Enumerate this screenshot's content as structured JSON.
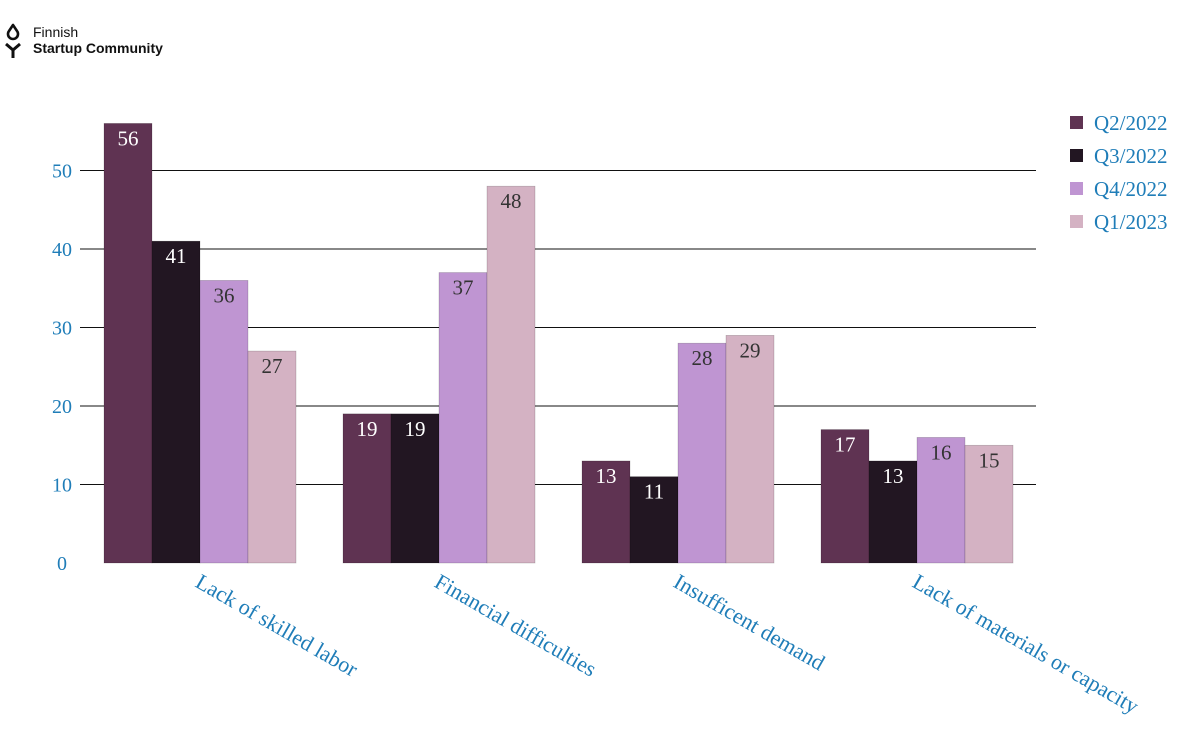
{
  "logo": {
    "line1": "Finnish",
    "line2": "Startup Community"
  },
  "chart_data": {
    "type": "bar",
    "categories": [
      "Lack of skilled labor",
      "Financial difficulties",
      "Insufficent demand",
      "Lack of materials or capacity"
    ],
    "series": [
      {
        "name": "Q2/2022",
        "color": "#5f3352",
        "label_color": "#ffffff",
        "values": [
          56,
          19,
          13,
          17
        ]
      },
      {
        "name": "Q3/2022",
        "color": "#221622",
        "label_color": "#ffffff",
        "values": [
          41,
          19,
          11,
          13
        ]
      },
      {
        "name": "Q4/2022",
        "color": "#bf95d2",
        "label_color": "#333333",
        "values": [
          36,
          37,
          28,
          16
        ]
      },
      {
        "name": "Q1/2023",
        "color": "#d4b2c3",
        "label_color": "#333333",
        "values": [
          27,
          48,
          29,
          15
        ]
      }
    ],
    "yticks": [
      0,
      10,
      20,
      30,
      40,
      50
    ],
    "ylim": [
      0,
      60
    ],
    "grid": true,
    "legend": "top-right"
  }
}
